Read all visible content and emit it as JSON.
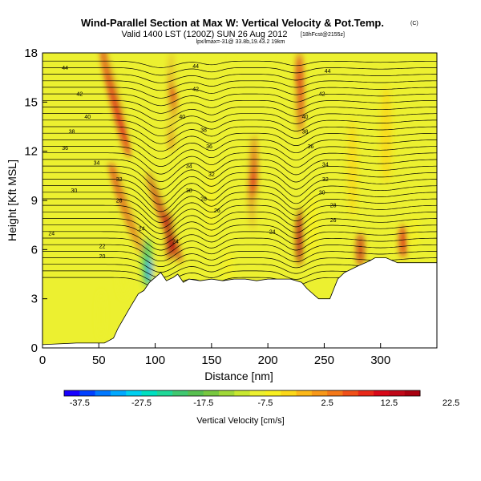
{
  "title": "Wind-Parallel Section at Max W: Vertical Velocity & Pot.Temp.",
  "title_mark": "(C)",
  "subtitle": "Valid 1400 LST (1200Z) SUN 26 Aug 2012",
  "subtitle_tag": "[18hFcst@2155z]",
  "subtitle2": "lpx/lmax=-31@ 33.8b,19.43.2 19km",
  "chart_data": {
    "type": "heatmap",
    "xlabel": "Distance [nm]",
    "ylabel": "Height [Kft MSL]",
    "xlim": [
      0,
      350
    ],
    "ylim": [
      0,
      18
    ],
    "xticks": [
      0,
      50,
      100,
      150,
      200,
      250,
      300
    ],
    "yticks": [
      0,
      3,
      6,
      9,
      12,
      15,
      18
    ],
    "colorbar": {
      "label": "Vertical Velocity [cm/s]",
      "min": -40,
      "max": 25,
      "step": 2.5,
      "tick_values": [
        -37.5,
        -27.5,
        -17.5,
        -7.5,
        2.5,
        12.5,
        22.5
      ],
      "colors": [
        "#1800ff",
        "#0040ff",
        "#0078ff",
        "#00a8ff",
        "#00d0f0",
        "#00e0c0",
        "#20d898",
        "#40c870",
        "#58c050",
        "#78c840",
        "#a0d838",
        "#c8e830",
        "#ecf030",
        "#f8f020",
        "#fcd818",
        "#fcb818",
        "#f89818",
        "#f47818",
        "#f05018",
        "#e82818",
        "#d80818",
        "#c00818",
        "#a80010"
      ]
    },
    "terrain": [
      [
        0,
        0.2
      ],
      [
        30,
        0.3
      ],
      [
        55,
        0.3
      ],
      [
        63,
        0.6
      ],
      [
        67,
        1.2
      ],
      [
        78,
        2.5
      ],
      [
        85,
        3.3
      ],
      [
        90,
        3.5
      ],
      [
        95,
        4.0
      ],
      [
        100,
        4.3
      ],
      [
        105,
        4.6
      ],
      [
        110,
        4.1
      ],
      [
        113,
        4.2
      ],
      [
        116,
        4.3
      ],
      [
        120,
        4.5
      ],
      [
        125,
        4.0
      ],
      [
        130,
        4.2
      ],
      [
        140,
        4.1
      ],
      [
        150,
        4.2
      ],
      [
        160,
        4.1
      ],
      [
        170,
        4.2
      ],
      [
        180,
        4.2
      ],
      [
        190,
        4.1
      ],
      [
        200,
        4.2
      ],
      [
        210,
        4.2
      ],
      [
        220,
        4.2
      ],
      [
        230,
        4.0
      ],
      [
        235,
        3.6
      ],
      [
        245,
        3.0
      ],
      [
        255,
        3.0
      ],
      [
        262,
        4.2
      ],
      [
        268,
        4.6
      ],
      [
        280,
        5.0
      ],
      [
        290,
        5.3
      ],
      [
        295,
        5.5
      ],
      [
        305,
        5.5
      ],
      [
        315,
        5.2
      ],
      [
        325,
        5.2
      ],
      [
        330,
        5.2
      ],
      [
        340,
        5.2
      ],
      [
        350,
        5.2
      ]
    ],
    "potential_temperature_labels": [
      {
        "value": "44",
        "x": 20,
        "y": 17.1
      },
      {
        "value": "44",
        "x": 136,
        "y": 17.2
      },
      {
        "value": "44",
        "x": 253,
        "y": 16.9
      },
      {
        "value": "42",
        "x": 33,
        "y": 15.5
      },
      {
        "value": "42",
        "x": 136,
        "y": 15.8
      },
      {
        "value": "42",
        "x": 248,
        "y": 15.5
      },
      {
        "value": "40",
        "x": 40,
        "y": 14.1
      },
      {
        "value": "40",
        "x": 124,
        "y": 14.1
      },
      {
        "value": "40",
        "x": 233,
        "y": 14.1
      },
      {
        "value": "38",
        "x": 26,
        "y": 13.2
      },
      {
        "value": "38",
        "x": 143,
        "y": 13.3
      },
      {
        "value": "38",
        "x": 233,
        "y": 13.2
      },
      {
        "value": "36",
        "x": 20,
        "y": 12.2
      },
      {
        "value": "36",
        "x": 148,
        "y": 12.3
      },
      {
        "value": "36",
        "x": 238,
        "y": 12.3
      },
      {
        "value": "34",
        "x": 48,
        "y": 11.3
      },
      {
        "value": "34",
        "x": 130,
        "y": 11.1
      },
      {
        "value": "34",
        "x": 251,
        "y": 11.2
      },
      {
        "value": "32",
        "x": 68,
        "y": 10.3
      },
      {
        "value": "32",
        "x": 150,
        "y": 10.6
      },
      {
        "value": "32",
        "x": 251,
        "y": 10.3
      },
      {
        "value": "30",
        "x": 28,
        "y": 9.6
      },
      {
        "value": "30",
        "x": 130,
        "y": 9.6
      },
      {
        "value": "30",
        "x": 248,
        "y": 9.5
      },
      {
        "value": "28",
        "x": 68,
        "y": 9.0
      },
      {
        "value": "28",
        "x": 143,
        "y": 9.1
      },
      {
        "value": "28",
        "x": 258,
        "y": 8.7
      },
      {
        "value": "26",
        "x": 155,
        "y": 8.4
      },
      {
        "value": "26",
        "x": 258,
        "y": 7.8
      },
      {
        "value": "24",
        "x": 8,
        "y": 7.0
      },
      {
        "value": "24",
        "x": 88,
        "y": 7.3
      },
      {
        "value": "24",
        "x": 118,
        "y": 6.5
      },
      {
        "value": "24",
        "x": 204,
        "y": 7.1
      },
      {
        "value": "22",
        "x": 53,
        "y": 6.2
      },
      {
        "value": "20",
        "x": 53,
        "y": 5.6
      }
    ]
  }
}
